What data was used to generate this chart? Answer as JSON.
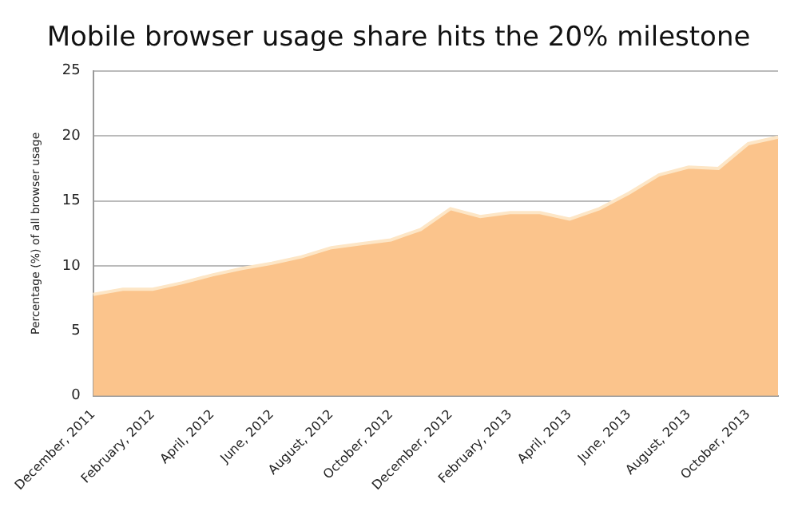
{
  "chart_data": {
    "type": "area",
    "title": "Mobile browser usage share hits the 20% milestone",
    "ylabel": "Percentage (%) of all browser usage",
    "categories": [
      "December, 2011",
      null,
      "February, 2012",
      null,
      "April, 2012",
      null,
      "June, 2012",
      null,
      "August, 2012",
      null,
      "October, 2012",
      null,
      "December, 2012",
      null,
      "February, 2013",
      null,
      "April, 2013",
      null,
      "June, 2013",
      null,
      "August, 2013",
      null,
      "October, 2013",
      null
    ],
    "values": [
      7.8,
      8.2,
      8.2,
      8.7,
      9.3,
      9.8,
      10.2,
      10.7,
      11.4,
      11.7,
      12.0,
      12.8,
      14.4,
      13.8,
      14.1,
      14.1,
      13.6,
      14.4,
      15.6,
      17.0,
      17.6,
      17.5,
      19.4,
      19.9
    ],
    "color": "#fbc48c",
    "ylim": [
      0,
      25
    ],
    "yticks": [
      0,
      5,
      10,
      15,
      20,
      25
    ],
    "grid": "y",
    "legend": false
  }
}
